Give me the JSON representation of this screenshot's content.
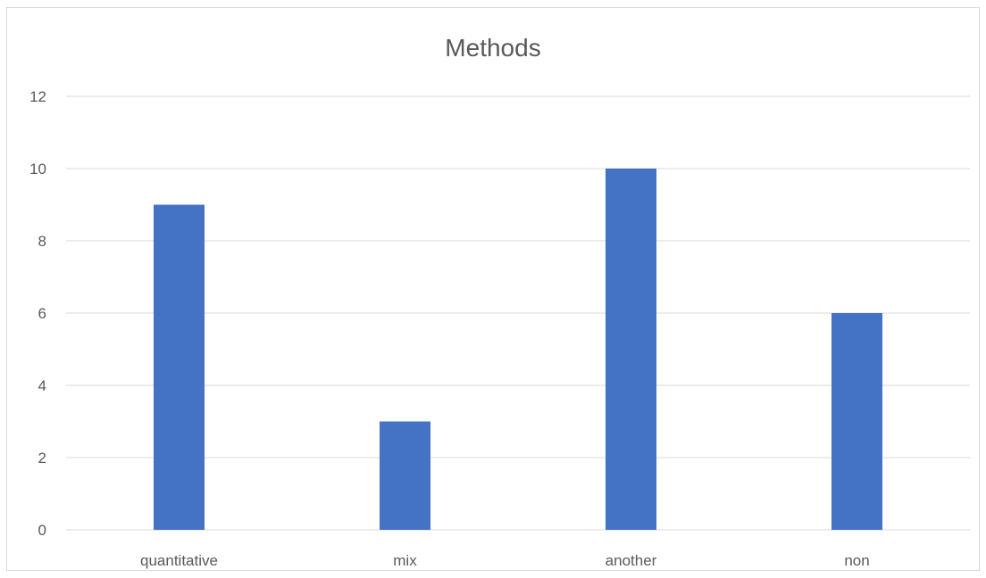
{
  "chart_data": {
    "type": "bar",
    "title": "Methods",
    "xlabel": "",
    "ylabel": "",
    "categories": [
      "quantitative",
      "mix",
      "another",
      "non"
    ],
    "series": [
      {
        "values": [
          9,
          3,
          10,
          6
        ],
        "color": "#4472c4"
      }
    ],
    "ylim": [
      0,
      12
    ],
    "yticks": [
      0,
      2,
      4,
      6,
      8,
      10,
      12
    ],
    "grid": true,
    "legend": "none"
  }
}
